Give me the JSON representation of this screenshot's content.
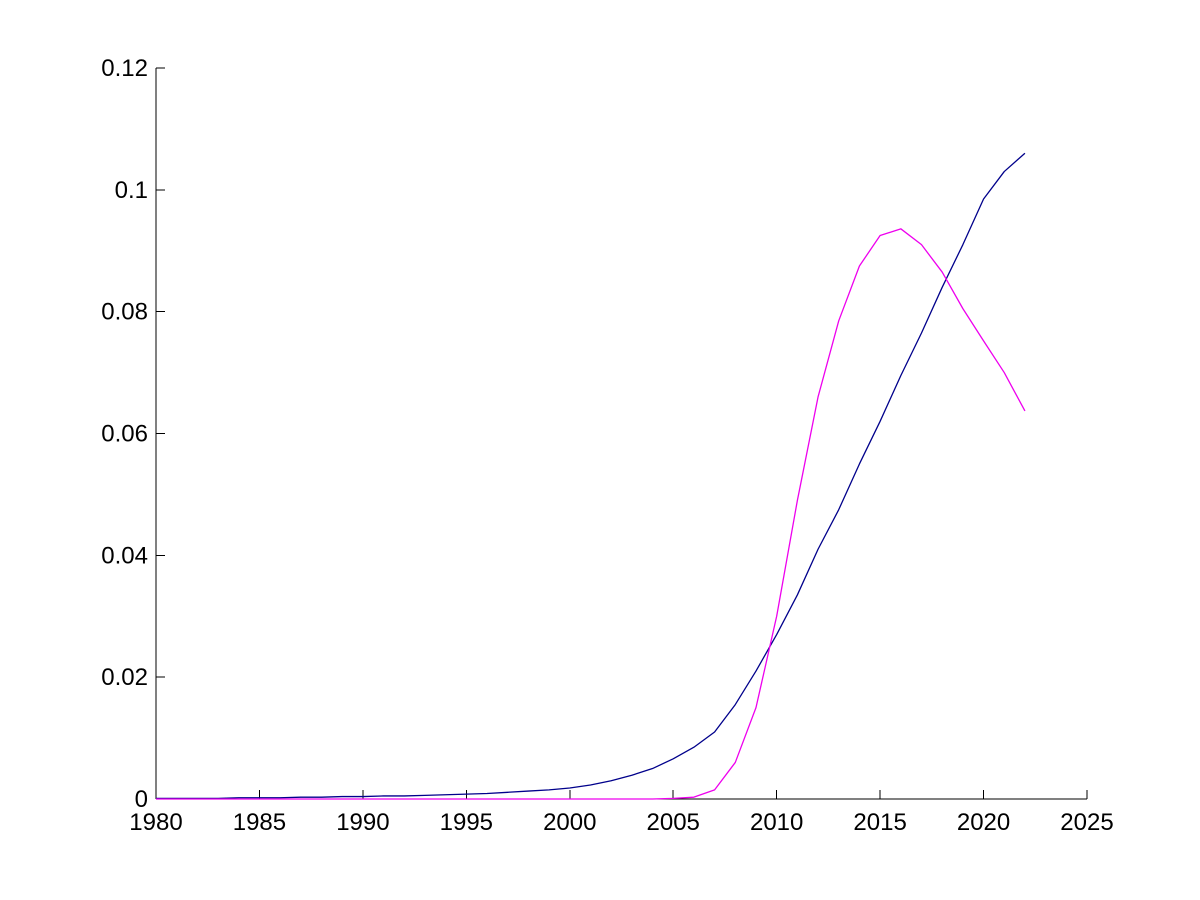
{
  "figure": {
    "background": "#ffffff",
    "axis_color": "#000000"
  },
  "chart_data": {
    "type": "line",
    "title": "",
    "xlabel": "",
    "ylabel": "",
    "xlim": [
      1980,
      2025
    ],
    "ylim": [
      0,
      0.12
    ],
    "grid": false,
    "legend_position": "none",
    "box": false,
    "tick_direction": "in",
    "x_ticks": [
      1980,
      1985,
      1990,
      1995,
      2000,
      2005,
      2010,
      2015,
      2020,
      2025
    ],
    "x_tick_labels": [
      "1980",
      "1985",
      "1990",
      "1995",
      "2000",
      "2005",
      "2010",
      "2015",
      "2020",
      "2025"
    ],
    "y_ticks": [
      0,
      0.02,
      0.04,
      0.06,
      0.08,
      0.1,
      0.12
    ],
    "y_tick_labels": [
      "0",
      "0.02",
      "0.04",
      "0.06",
      "0.08",
      "0.1",
      "0.12"
    ],
    "x": [
      1980,
      1981,
      1982,
      1983,
      1984,
      1985,
      1986,
      1987,
      1988,
      1989,
      1990,
      1991,
      1992,
      1993,
      1994,
      1995,
      1996,
      1997,
      1998,
      1999,
      2000,
      2001,
      2002,
      2003,
      2004,
      2005,
      2006,
      2007,
      2008,
      2009,
      2010,
      2011,
      2012,
      2013,
      2014,
      2015,
      2016,
      2017,
      2018,
      2019,
      2020,
      2021,
      2022
    ],
    "series": [
      {
        "name": "dark-blue-line",
        "color": "#00008B",
        "values": [
          0.0001,
          0.0001,
          0.0001,
          0.0001,
          0.0002,
          0.0002,
          0.0002,
          0.0003,
          0.0003,
          0.0004,
          0.0004,
          0.0005,
          0.0005,
          0.0006,
          0.0007,
          0.0008,
          0.0009,
          0.0011,
          0.0013,
          0.0015,
          0.0018,
          0.0023,
          0.003,
          0.0039,
          0.005,
          0.0066,
          0.0085,
          0.011,
          0.0155,
          0.021,
          0.027,
          0.0335,
          0.041,
          0.0475,
          0.055,
          0.062,
          0.0695,
          0.0765,
          0.084,
          0.091,
          0.0985,
          0.103,
          0.106
        ]
      },
      {
        "name": "magenta-line",
        "color": "#EE00EE",
        "values": [
          0.0,
          0.0,
          0.0,
          0.0,
          0.0,
          0.0,
          0.0,
          0.0,
          0.0,
          0.0,
          0.0,
          0.0,
          0.0,
          0.0,
          0.0,
          0.0,
          0.0,
          0.0,
          0.0,
          0.0,
          0.0,
          0.0,
          0.0,
          0.0,
          0.0,
          0.0001,
          0.0003,
          0.0015,
          0.006,
          0.015,
          0.03,
          0.049,
          0.066,
          0.0785,
          0.0875,
          0.0925,
          0.0936,
          0.091,
          0.0865,
          0.0805,
          0.0752,
          0.07,
          0.0637
        ]
      }
    ]
  }
}
